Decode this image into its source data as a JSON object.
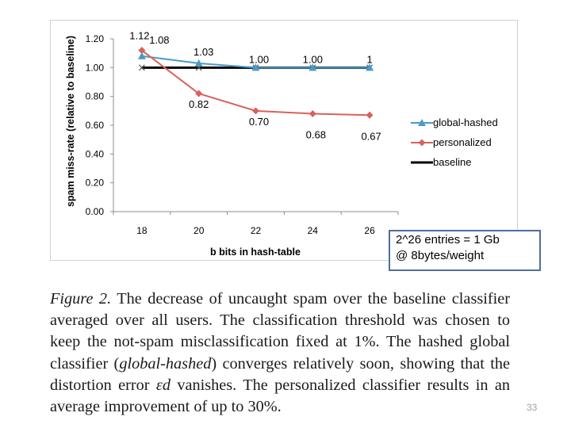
{
  "chart_data": {
    "type": "line",
    "title": "",
    "xlabel": "b bits in hash-table",
    "ylabel": "spam miss-rate (relative to baseline)",
    "x": [
      18,
      20,
      22,
      24,
      26
    ],
    "x_tick_labels": [
      "18",
      "20",
      "22",
      "24",
      "26"
    ],
    "y_tick_labels": [
      "0.00",
      "0.20",
      "0.40",
      "0.60",
      "0.80",
      "1.00",
      "1.20"
    ],
    "ylim": [
      0,
      1.2
    ],
    "grid": false,
    "legend_position": "right",
    "series": [
      {
        "name": "global-hashed",
        "values": [
          1.08,
          1.03,
          1.0,
          1.0,
          1.0
        ],
        "labels": [
          "1.08",
          "1.03",
          "1.00",
          "1.00",
          "1"
        ],
        "color": "#4a9bc7",
        "marker": "triangle"
      },
      {
        "name": "personalized",
        "values": [
          1.12,
          0.82,
          0.7,
          0.68,
          0.67
        ],
        "labels": [
          "1.12",
          "0.82",
          "0.70",
          "0.68",
          "0.67"
        ],
        "color": "#d9625c",
        "marker": "diamond"
      },
      {
        "name": "baseline",
        "values": [
          1.0,
          1.0,
          1.0,
          1.0,
          1.0
        ],
        "color": "#000000",
        "marker": "x"
      }
    ]
  },
  "callout": {
    "text": "2^26 entries = 1 Gb\n@ 8bytes/weight"
  },
  "caption": {
    "figure_label": "Figure 2.",
    "text_1": " The decrease of uncaught spam over the baseline classifier averaged over all users.  The classification threshold was chosen to keep the not-spam misclassification fixed at 1%. The hashed global classifier (",
    "term_global": "global-hashed",
    "text_2": ") converges relatively soon, showing that the distortion error ",
    "symbol": "εd",
    "text_3": " vanishes. The personalized classifier results in an average improvement of up to 30%."
  },
  "page_number": "33"
}
